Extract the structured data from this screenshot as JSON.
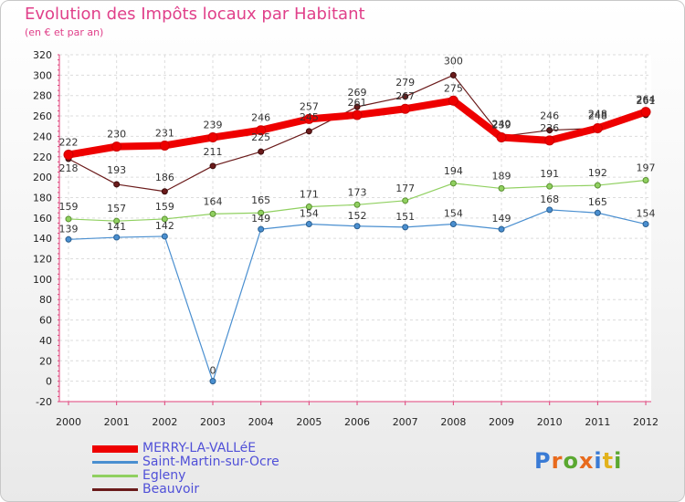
{
  "title": "Evolution des Impôts locaux par Habitant",
  "subtitle": "(en € et par an)",
  "logo": {
    "text": "Proxiti",
    "colors": [
      "#3a7bd5",
      "#e86a1c",
      "#5aa830",
      "#e86a1c",
      "#3a7bd5",
      "#e2b21b",
      "#5aa830"
    ]
  },
  "chart_data": {
    "type": "line",
    "x": [
      "2000",
      "2001",
      "2002",
      "2003",
      "2004",
      "2005",
      "2006",
      "2007",
      "2008",
      "2009",
      "2010",
      "2011",
      "2012"
    ],
    "ylim": [
      -20,
      320
    ],
    "yticks": [
      -20,
      0,
      20,
      40,
      60,
      80,
      100,
      120,
      140,
      160,
      180,
      200,
      220,
      240,
      260,
      280,
      300,
      320
    ],
    "grid": true,
    "legend": "bottom-left",
    "series": [
      {
        "name": "MERRY-LA-VALLéE",
        "color": "#ee0000",
        "values": [
          222,
          230,
          231,
          239,
          246,
          257,
          261,
          267,
          275,
          239,
          236,
          248,
          264
        ]
      },
      {
        "name": "Saint-Martin-sur-Ocre",
        "color": "#4a8fd0",
        "values": [
          139,
          141,
          142,
          0,
          149,
          154,
          152,
          151,
          154,
          149,
          168,
          165,
          154
        ]
      },
      {
        "name": "Egleny",
        "color": "#90d060",
        "values": [
          159,
          157,
          159,
          164,
          165,
          171,
          173,
          177,
          194,
          189,
          191,
          192,
          197
        ]
      },
      {
        "name": "Beauvoir",
        "color": "#6b1b1b",
        "values": [
          218,
          193,
          186,
          211,
          225,
          245,
          269,
          279,
          300,
          240,
          246,
          248,
          261
        ]
      }
    ]
  }
}
